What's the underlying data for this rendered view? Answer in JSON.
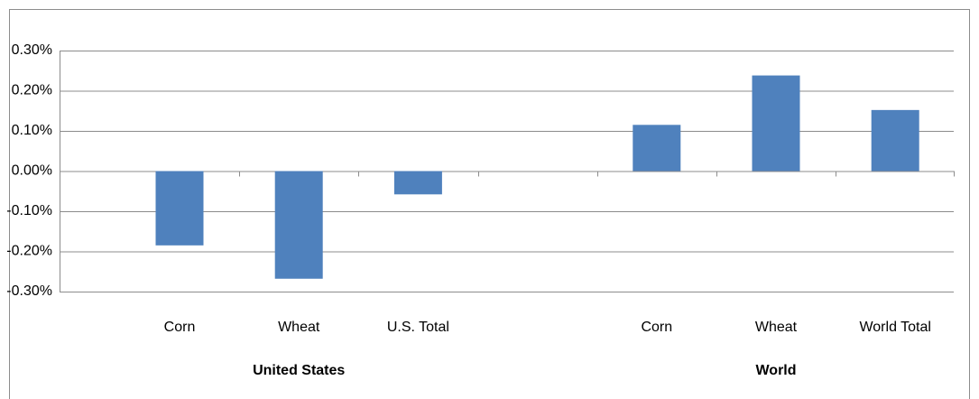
{
  "chart_data": {
    "type": "bar",
    "categories": [
      "Corn",
      "Wheat",
      "U.S. Total",
      null,
      "Corn",
      "Wheat",
      "World Total"
    ],
    "values": [
      -0.185,
      -0.268,
      -0.058,
      null,
      0.115,
      0.238,
      0.152
    ],
    "color": "#4f81bd",
    "groups": [
      "United States",
      "World"
    ],
    "ylim": [
      -0.3,
      0.3
    ],
    "yticks": [
      {
        "value": -0.3,
        "label": "-0.30%"
      },
      {
        "value": -0.2,
        "label": "-0.20%"
      },
      {
        "value": -0.1,
        "label": "-0.10%"
      },
      {
        "value": 0,
        "label": "0.00%"
      },
      {
        "value": 0.1,
        "label": "0.10%"
      },
      {
        "value": 0.2,
        "label": "0.20%"
      },
      {
        "value": 0.3,
        "label": "0.30%"
      }
    ],
    "grid": true
  }
}
